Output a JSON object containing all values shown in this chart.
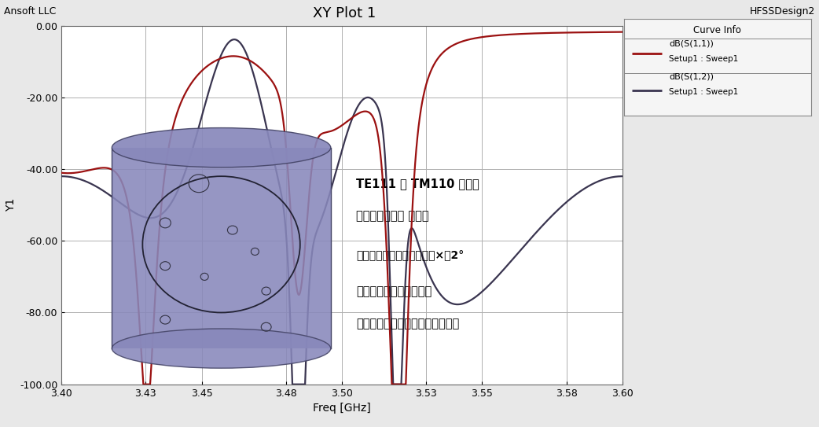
{
  "title": "XY Plot 1",
  "top_left_text": "Ansoft LLC",
  "top_right_text": "HFSSDesign2",
  "xlabel": "Freq [GHz]",
  "ylabel": "Y1",
  "xlim": [
    3.4,
    3.6
  ],
  "ylim": [
    -100.0,
    0.0
  ],
  "xticks": [
    3.4,
    3.43,
    3.45,
    3.48,
    3.5,
    3.53,
    3.55,
    3.58,
    3.6
  ],
  "yticks": [
    0.0,
    -20.0,
    -40.0,
    -60.0,
    -80.0,
    -100.0
  ],
  "bg_color": "#e8e8e8",
  "plot_bg_color": "#ffffff",
  "grid_color": "#b0b0b0",
  "curve1_color": "#9b1111",
  "curve2_color": "#3a3550",
  "legend_title": "Curve Info",
  "annotation_lines": [
    "TE111 和 TM110 双双模",
    "单腔四模滤波器 第四版",
    "使用了同侧接头，输入微偏×轤2°",
    "外凸耦合取代两个磁环。",
    "寄生耦合控制和利用的恰到好处。"
  ],
  "cyl_color": "#8888bb",
  "cyl_edge": "#444466"
}
